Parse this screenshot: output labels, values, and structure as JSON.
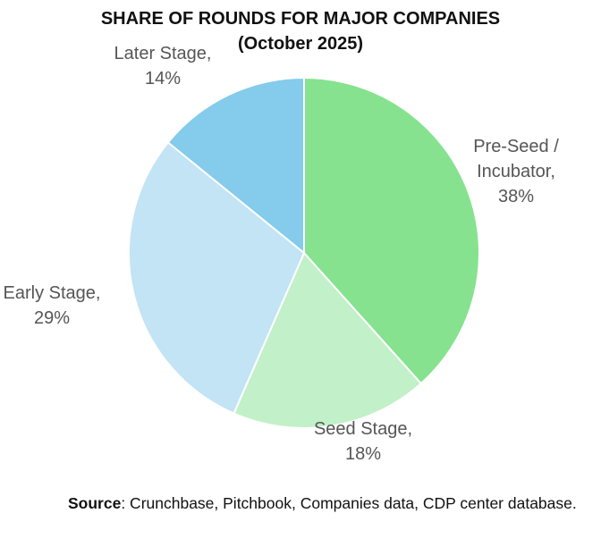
{
  "chart_data": {
    "type": "pie",
    "title": "SHARE OF ROUNDS  FOR MAJOR COMPANIES",
    "subtitle": "(October 2025)",
    "slices": [
      {
        "label": "Pre-Seed / Incubator",
        "value": 38,
        "value_label": "38%",
        "color": "#86e28f",
        "label_lines": [
          "Pre-Seed /",
          "Incubator,",
          "38%"
        ]
      },
      {
        "label": "Seed Stage",
        "value": 18,
        "value_label": "18%",
        "color": "#c2f0c8",
        "label_lines": [
          "Seed Stage,",
          "18%"
        ]
      },
      {
        "label": "Early Stage",
        "value": 29,
        "value_label": "29%",
        "color": "#c2e4f5",
        "label_lines": [
          "Early Stage,",
          "29%"
        ]
      },
      {
        "label": "Later Stage",
        "value": 14,
        "value_label": "14%",
        "color": "#84cbec",
        "label_lines": [
          "Later Stage,",
          "14%"
        ]
      }
    ]
  },
  "source": {
    "label": "Source",
    "text": ": Crunchbase, Pitchbook, Companies data, CDP center database."
  }
}
